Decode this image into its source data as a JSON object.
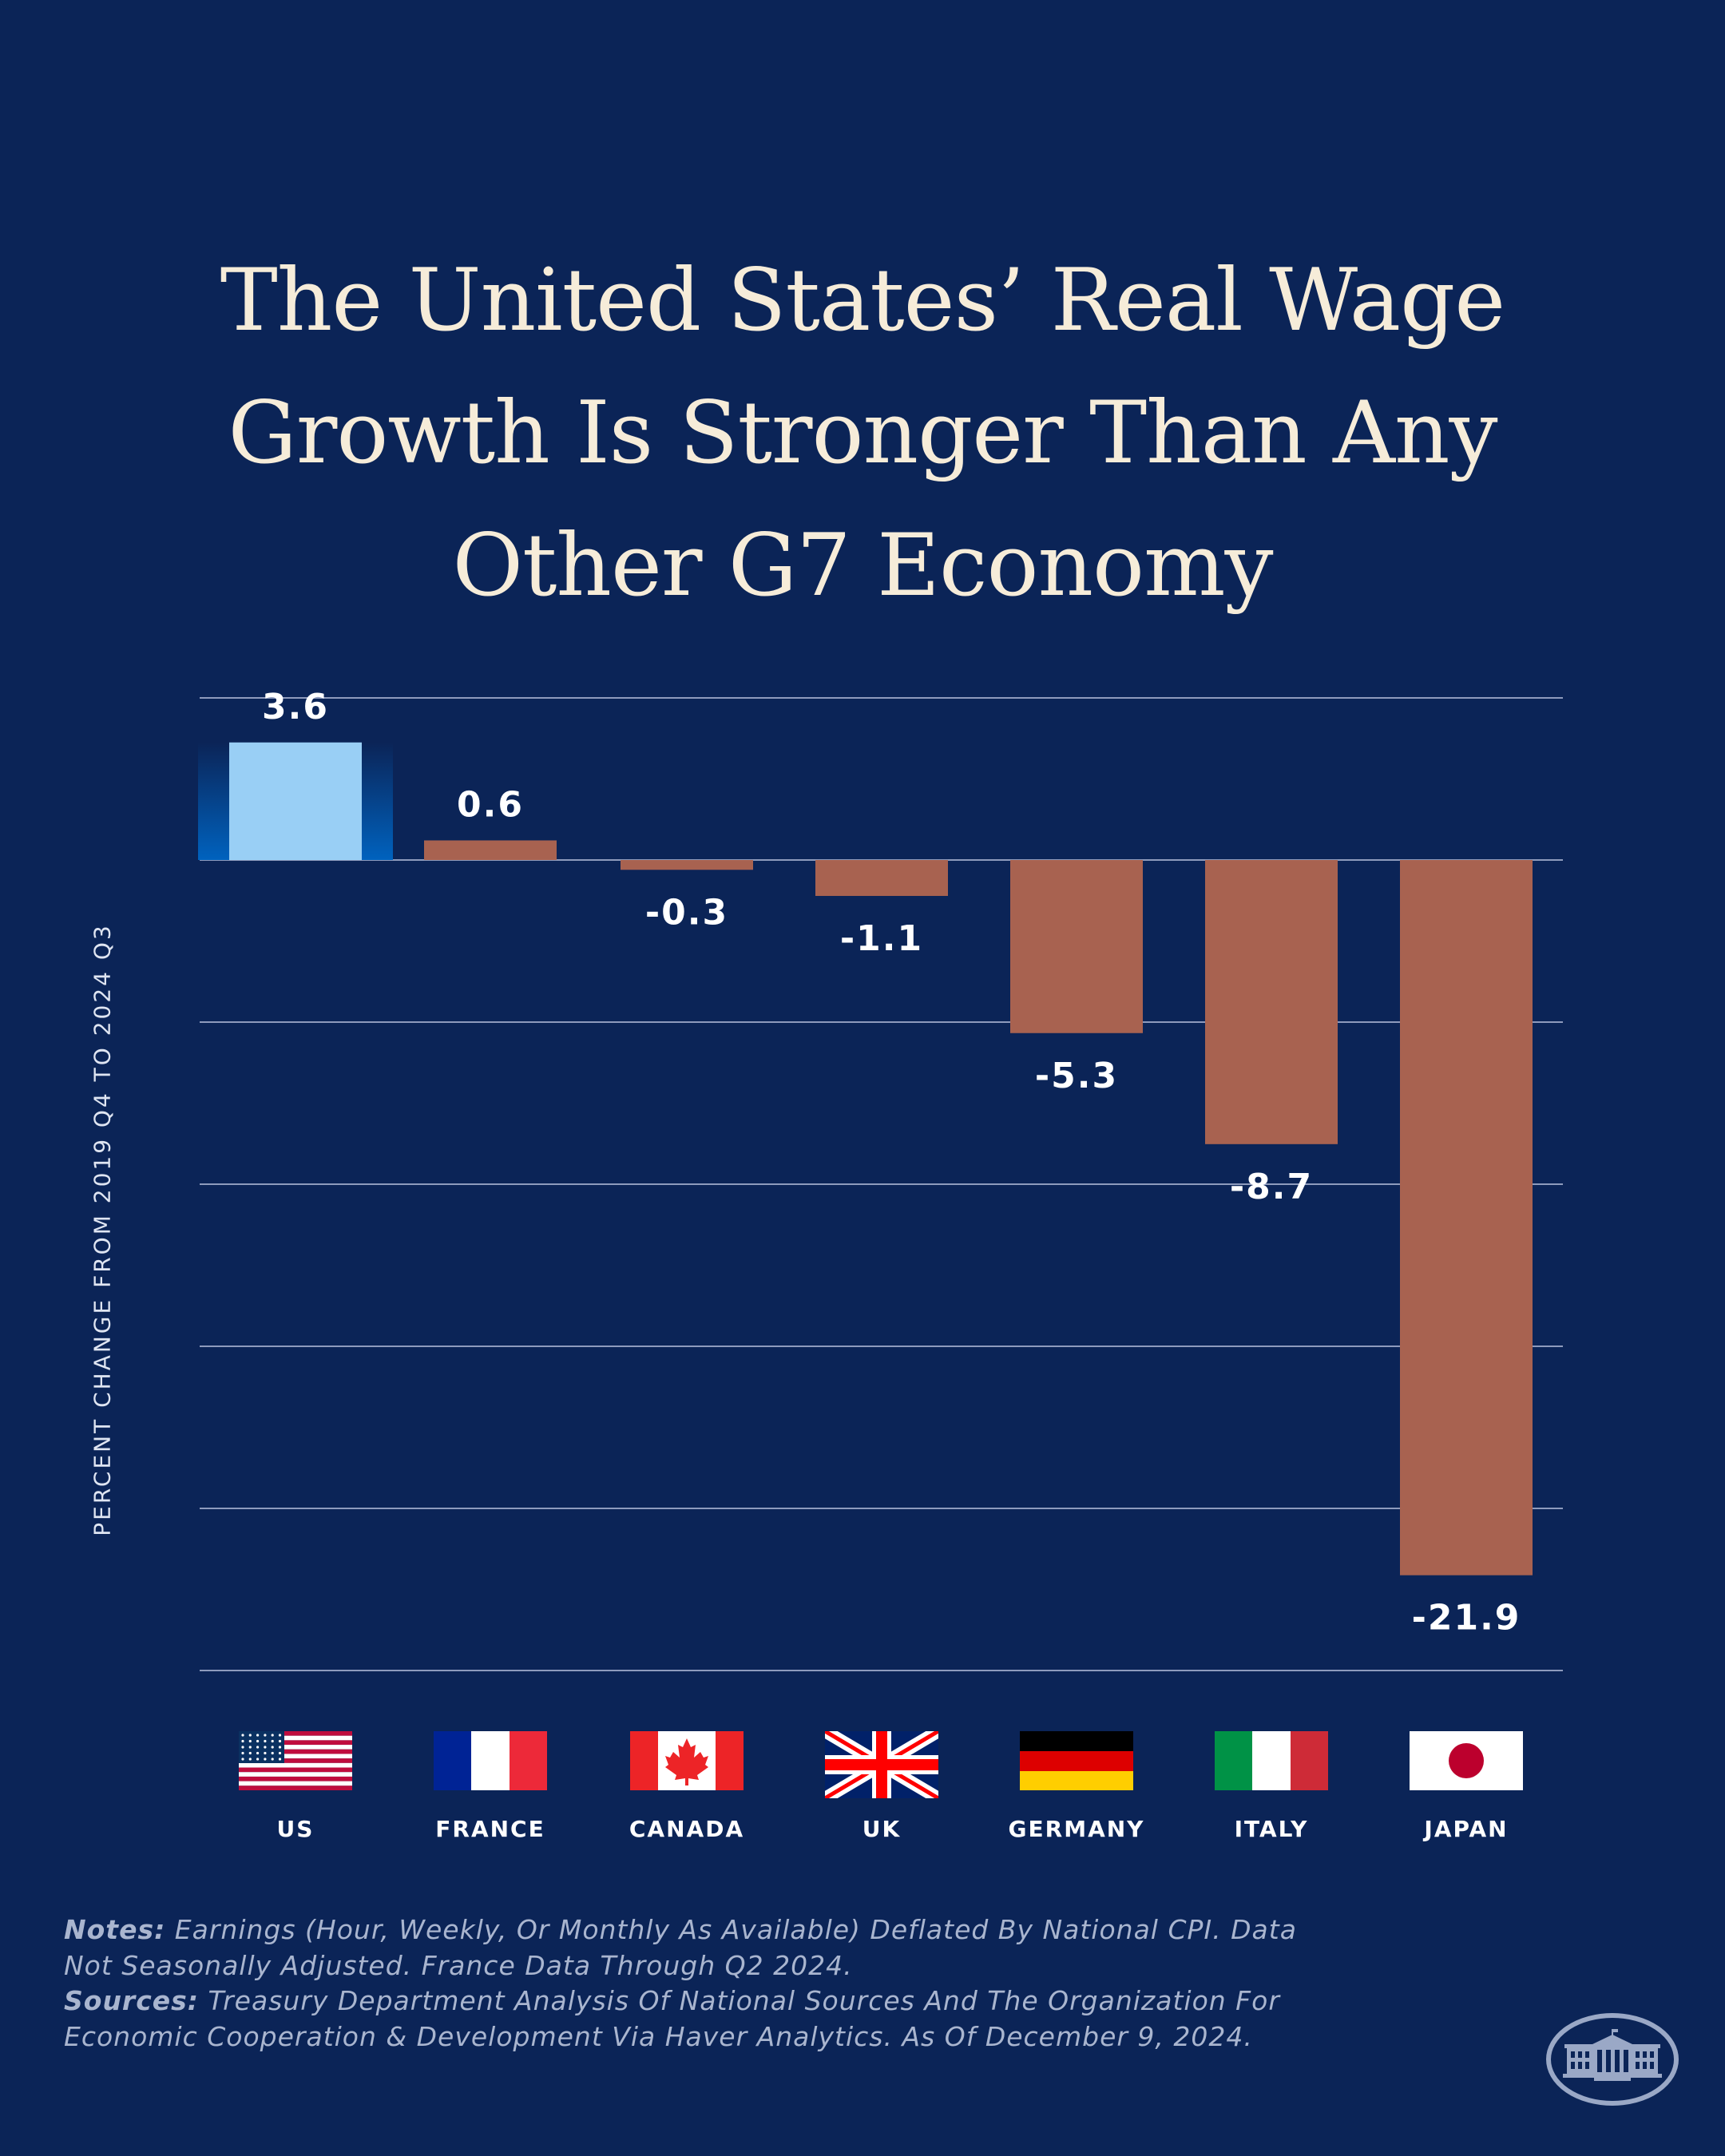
{
  "title_lines": [
    "The United States’ Real Wage",
    "Growth Is Stronger Than Any",
    "Other G7 Economy"
  ],
  "colors": {
    "background": "#0b2457",
    "highlight_bar": "#99cff5",
    "highlight_glow": "#0062be",
    "other_bar": "#a86250",
    "gridline": "#8e9bbd",
    "title": "#f6ecd9"
  },
  "chart_data": {
    "type": "bar",
    "title": "The United States’ Real Wage Growth Is Stronger Than Any Other G7 Economy",
    "xlabel": "",
    "ylabel": "PERCENT CHANGE FROM 2019 Q4 TO 2024 Q3",
    "categories": [
      "US",
      "FRANCE",
      "CANADA",
      "UK",
      "GERMANY",
      "ITALY",
      "JAPAN"
    ],
    "values": [
      3.6,
      0.6,
      -0.3,
      -1.1,
      -5.3,
      -8.7,
      -21.9
    ],
    "data_labels": [
      "3.6",
      "0.6",
      "-0.3",
      "-1.1",
      "-5.3",
      "-8.7",
      "-21.9"
    ],
    "highlight": "US",
    "ylim": [
      -25,
      5
    ],
    "gridlines": [
      5,
      0,
      -5,
      -10,
      -15,
      -20,
      -25
    ],
    "grid": true,
    "y_tick_labels_shown": false,
    "legend": "none",
    "category_icons": [
      "us-flag-icon",
      "france-flag-icon",
      "canada-flag-icon",
      "uk-flag-icon",
      "germany-flag-icon",
      "italy-flag-icon",
      "japan-flag-icon"
    ]
  },
  "notes": {
    "notes_label": "Notes:",
    "notes_text": " Earnings (Hour, Weekly, Or Monthly As Available) Deflated By National CPI. Data Not Seasonally Adjusted. France Data Through Q2 2024.",
    "sources_label": "Sources:",
    "sources_text": " Treasury Department Analysis Of National Sources And The Organization For Economic Cooperation & Development Via Haver Analytics. As Of December 9, 2024."
  },
  "logo": "white-house-logo-icon"
}
